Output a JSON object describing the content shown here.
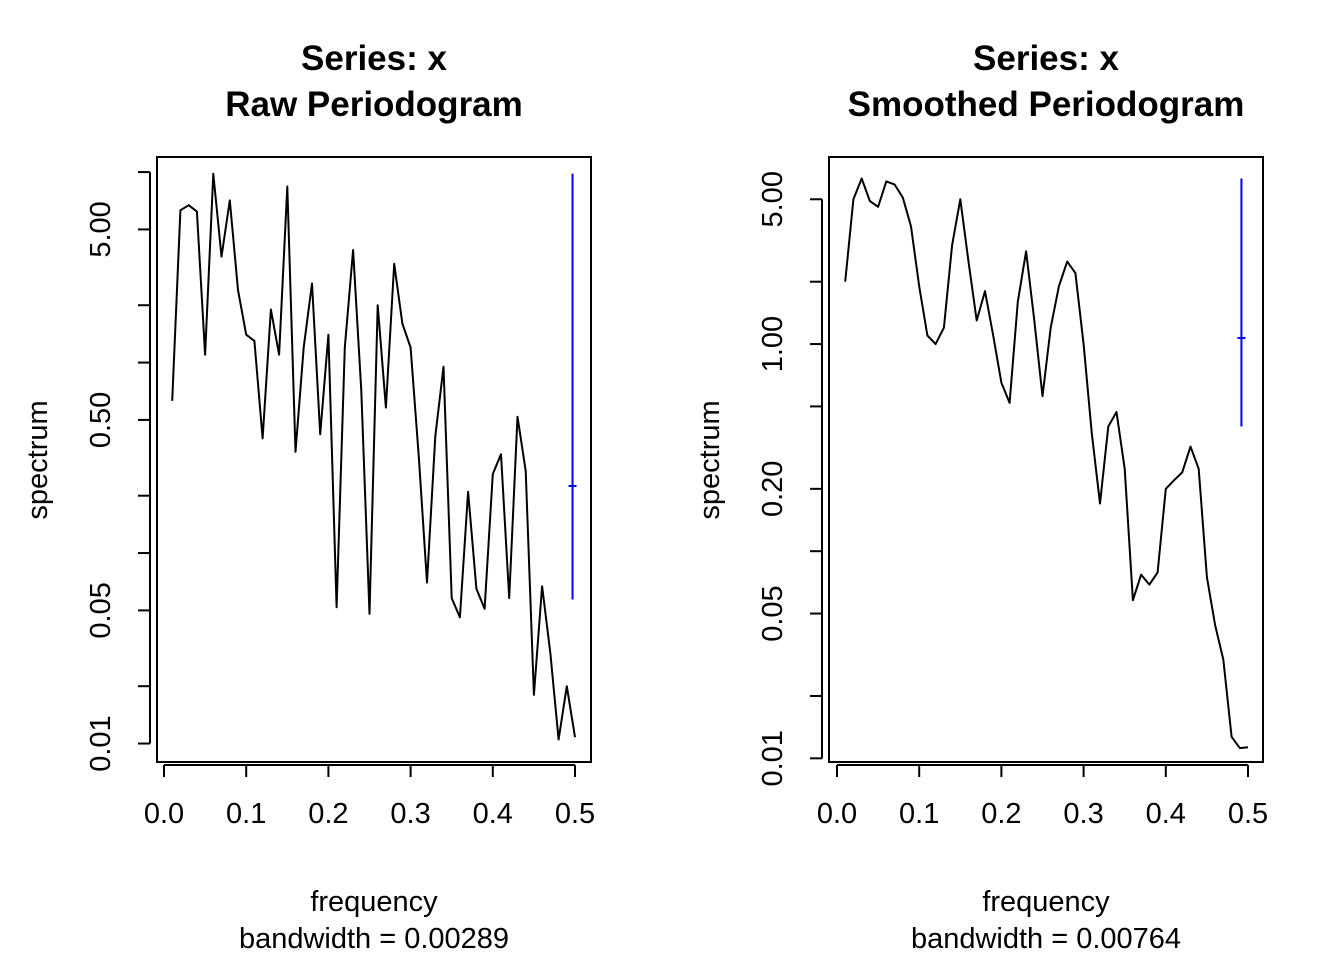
{
  "chart_data": [
    {
      "type": "line",
      "title": "Series: x",
      "subtitle": "Raw Periodogram",
      "xlabel": "frequency",
      "xlabel2": "bandwidth = 0.00289",
      "ylabel": "spectrum",
      "log_y": true,
      "xlim": [
        0.0,
        0.5
      ],
      "ylim": [
        0.008,
        12
      ],
      "x_ticks": [
        "0.0",
        "0.1",
        "0.2",
        "0.3",
        "0.4",
        "0.5"
      ],
      "y_ticks": [
        "0.01",
        "0.05",
        "0.50",
        "5.00"
      ],
      "grid": false,
      "series": [
        {
          "color": "#000000",
          "x": [
            0.01,
            0.02,
            0.03,
            0.04,
            0.05,
            0.06,
            0.07,
            0.08,
            0.09,
            0.1,
            0.11,
            0.12,
            0.13,
            0.14,
            0.15,
            0.16,
            0.17,
            0.18,
            0.19,
            0.2,
            0.21,
            0.22,
            0.23,
            0.24,
            0.25,
            0.26,
            0.27,
            0.28,
            0.29,
            0.3,
            0.31,
            0.32,
            0.33,
            0.34,
            0.35,
            0.36,
            0.37,
            0.38,
            0.39,
            0.4,
            0.41,
            0.42,
            0.43,
            0.44,
            0.45,
            0.46,
            0.47,
            0.48,
            0.49,
            0.5
          ],
          "y": [
            0.63,
            6.3,
            6.7,
            6.2,
            1.1,
            9.8,
            3.6,
            7.1,
            2.4,
            1.4,
            1.3,
            0.4,
            1.9,
            1.1,
            8.4,
            0.34,
            1.2,
            2.6,
            0.42,
            1.4,
            0.052,
            1.2,
            3.9,
            0.71,
            0.048,
            2.0,
            0.58,
            3.3,
            1.6,
            1.2,
            0.32,
            0.07,
            0.41,
            0.95,
            0.058,
            0.046,
            0.21,
            0.065,
            0.051,
            0.26,
            0.33,
            0.058,
            0.52,
            0.27,
            0.018,
            0.067,
            0.03,
            0.0105,
            0.02,
            0.0108
          ]
        }
      ],
      "ci_bar": {
        "color": "#0000ff",
        "x": 0.497,
        "lower": 0.057,
        "upper": 9.8,
        "center": 0.225
      }
    },
    {
      "type": "line",
      "title": "Series: x",
      "subtitle": "Smoothed Periodogram",
      "xlabel": "frequency",
      "xlabel2": "bandwidth = 0.00764",
      "ylabel": "spectrum",
      "log_y": true,
      "xlim": [
        0.0,
        0.5
      ],
      "ylim": [
        0.0096,
        8.0
      ],
      "x_ticks": [
        "0.0",
        "0.1",
        "0.2",
        "0.3",
        "0.4",
        "0.5"
      ],
      "y_ticks": [
        "0.01",
        "0.05",
        "0.20",
        "1.00",
        "5.00"
      ],
      "grid": false,
      "series": [
        {
          "color": "#000000",
          "x": [
            0.01,
            0.02,
            0.03,
            0.04,
            0.05,
            0.06,
            0.07,
            0.08,
            0.09,
            0.1,
            0.11,
            0.12,
            0.13,
            0.14,
            0.15,
            0.16,
            0.17,
            0.18,
            0.19,
            0.2,
            0.21,
            0.22,
            0.23,
            0.24,
            0.25,
            0.26,
            0.27,
            0.28,
            0.29,
            0.3,
            0.31,
            0.32,
            0.33,
            0.34,
            0.35,
            0.36,
            0.37,
            0.38,
            0.39,
            0.4,
            0.41,
            0.42,
            0.43,
            0.44,
            0.45,
            0.46,
            0.47,
            0.48,
            0.49,
            0.5
          ],
          "y": [
            2.0,
            5.0,
            6.3,
            4.9,
            4.6,
            6.1,
            5.9,
            5.1,
            3.7,
            1.9,
            1.1,
            1.0,
            1.2,
            3.0,
            5.0,
            2.5,
            1.3,
            1.8,
            1.1,
            0.65,
            0.52,
            1.6,
            2.8,
            1.3,
            0.56,
            1.2,
            1.9,
            2.5,
            2.2,
            1.0,
            0.37,
            0.17,
            0.4,
            0.47,
            0.25,
            0.058,
            0.077,
            0.069,
            0.079,
            0.2,
            0.22,
            0.24,
            0.32,
            0.25,
            0.075,
            0.044,
            0.03,
            0.0127,
            0.0112,
            0.0113
          ]
        }
      ],
      "ci_bar": {
        "color": "#0000ff",
        "x": 0.492,
        "lower": 0.4,
        "upper": 6.3,
        "center": 1.07
      }
    }
  ]
}
